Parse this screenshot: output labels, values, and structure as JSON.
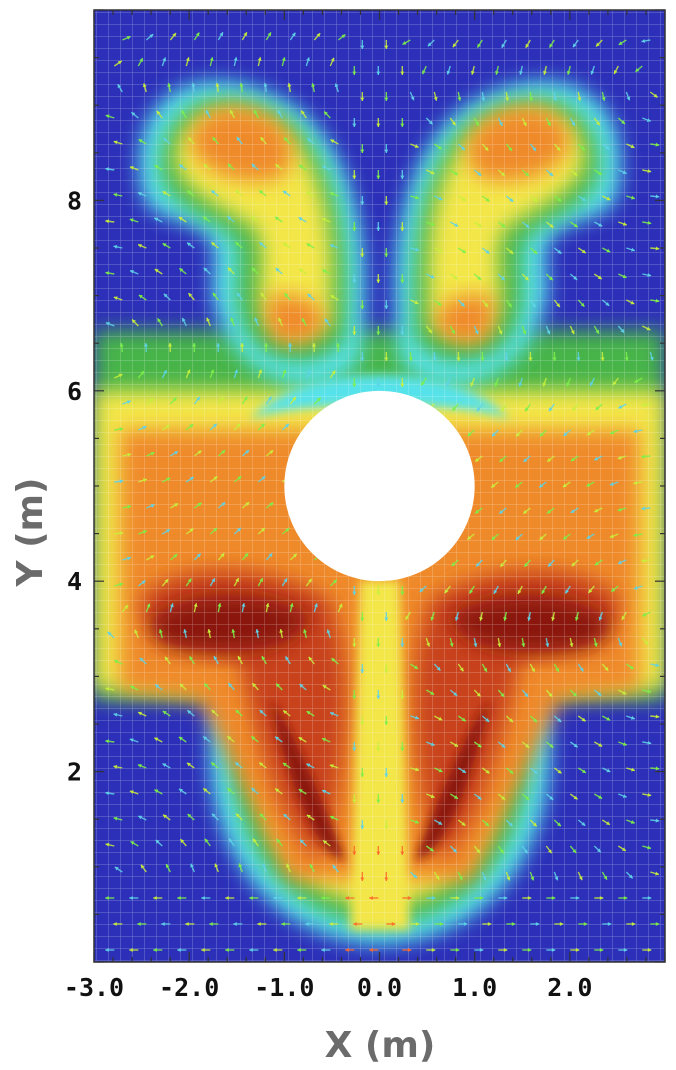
{
  "chart_data": {
    "type": "heatmap",
    "title": "",
    "xlabel": "X (m)",
    "ylabel": "Y (m)",
    "xlim": [
      -3.0,
      3.0
    ],
    "ylim": [
      0,
      10
    ],
    "x_ticks": [
      -3.0,
      -2.0,
      -1.0,
      0.0,
      1.0,
      2.0
    ],
    "x_tick_labels": [
      "-3.0",
      "-2.0",
      "-1.0",
      "0.0",
      "1.0",
      "2.0"
    ],
    "y_ticks": [
      2,
      4,
      6,
      8
    ],
    "y_tick_labels": [
      "2",
      "4",
      "6",
      "8"
    ],
    "obstacle": {
      "shape": "circle",
      "center": [
        0.0,
        5.0
      ],
      "radius": 1.0
    },
    "overlays": [
      "quadrilateral mesh",
      "velocity vector arrows"
    ],
    "colormap": [
      "#2a2fb8",
      "#3f8fe0",
      "#57e2ea",
      "#46b44a",
      "#f3e64a",
      "#ef8a2c",
      "#c8421c",
      "#8a1410"
    ],
    "colormap_min_color": "#2a2fb8",
    "colormap_max_color": "#8a1410",
    "grid": false,
    "legend": "none"
  }
}
